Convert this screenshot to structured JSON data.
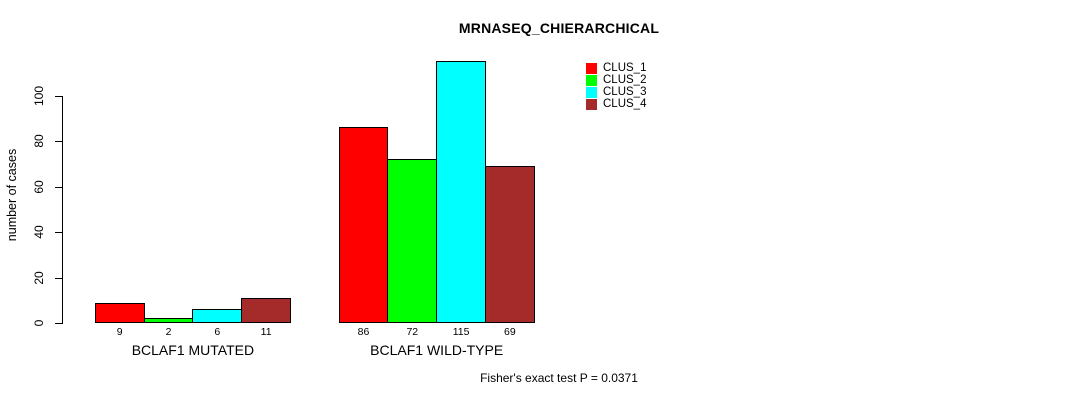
{
  "chart": {
    "title": "MRNASEQ_CHIERARCHICAL",
    "ylabel": "number of cases",
    "note": "Fisher's exact test P = 0.0371"
  },
  "chart_data": {
    "type": "bar",
    "title": "MRNASEQ_CHIERARCHICAL",
    "xlabel": "",
    "ylabel": "number of cases",
    "categories": [
      "BCLAF1 MUTATED",
      "BCLAF1 WILD-TYPE"
    ],
    "series": [
      {
        "name": "CLUS_1",
        "color": "#ff0000",
        "values": [
          9,
          86
        ]
      },
      {
        "name": "CLUS_2",
        "color": "#00ff00",
        "values": [
          2,
          72
        ]
      },
      {
        "name": "CLUS_3",
        "color": "#00ffff",
        "values": [
          6,
          115
        ]
      },
      {
        "name": "CLUS_4",
        "color": "#a52a2a",
        "values": [
          11,
          69
        ]
      }
    ],
    "bar_value_labels": [
      [
        "9",
        "2",
        "6",
        "11"
      ],
      [
        "86",
        "72",
        "115",
        "69"
      ]
    ],
    "yticks": [
      0,
      20,
      40,
      60,
      80,
      100
    ],
    "ylim": [
      0,
      115
    ],
    "grid": false,
    "legend_position": "top-right-inside",
    "annotation": "Fisher's exact test P = 0.0371"
  }
}
